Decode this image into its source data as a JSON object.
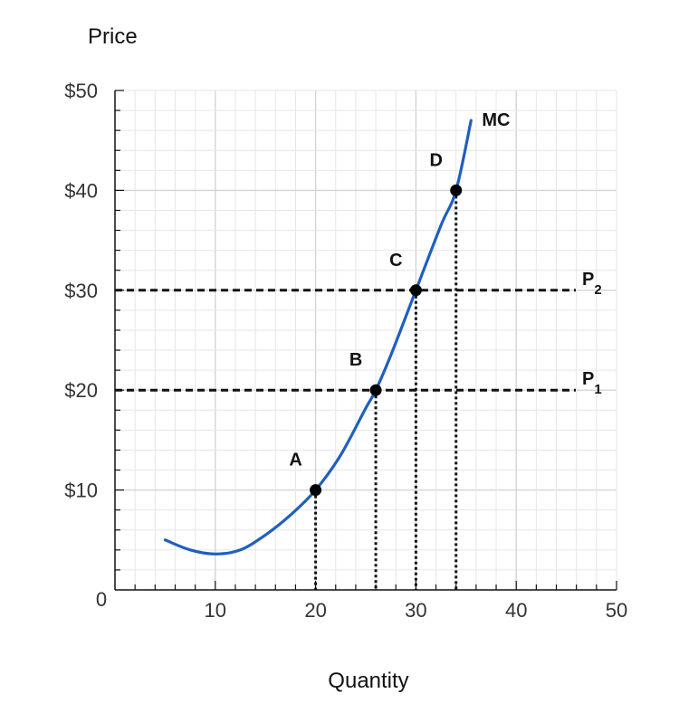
{
  "chart_data": {
    "type": "line",
    "ylabel": "Price",
    "xlabel": "Quantity",
    "xlim": [
      0,
      50
    ],
    "ylim": [
      0,
      50
    ],
    "x_ticks": [
      {
        "value": 0,
        "label": "0"
      },
      {
        "value": 10,
        "label": "10"
      },
      {
        "value": 20,
        "label": "20"
      },
      {
        "value": 30,
        "label": "30"
      },
      {
        "value": 40,
        "label": "40"
      },
      {
        "value": 50,
        "label": "50"
      }
    ],
    "y_ticks": [
      {
        "value": 10,
        "label": "$10"
      },
      {
        "value": 20,
        "label": "$20"
      },
      {
        "value": 30,
        "label": "$30"
      },
      {
        "value": 40,
        "label": "$40"
      },
      {
        "value": 50,
        "label": "$50"
      }
    ],
    "grid": true,
    "curve": {
      "name": "MC",
      "color": "#1f5fbf",
      "x": [
        5,
        7.5,
        10,
        12.5,
        15,
        17.5,
        20,
        22.5,
        25,
        26,
        27.5,
        30,
        32.5,
        34,
        35.5
      ],
      "y": [
        5,
        4,
        3.6,
        4,
        5.5,
        7.5,
        10,
        13.5,
        18.2,
        20,
        23.5,
        30,
        36.5,
        40,
        47
      ]
    },
    "price_lines": [
      {
        "y": 30,
        "label": "P",
        "sub": "2"
      },
      {
        "y": 20,
        "label": "P",
        "sub": "1"
      }
    ],
    "points": [
      {
        "label": "A",
        "x": 20,
        "y": 10
      },
      {
        "label": "B",
        "x": 26,
        "y": 20
      },
      {
        "label": "C",
        "x": 30,
        "y": 30
      },
      {
        "label": "D",
        "x": 34,
        "y": 40
      }
    ]
  }
}
